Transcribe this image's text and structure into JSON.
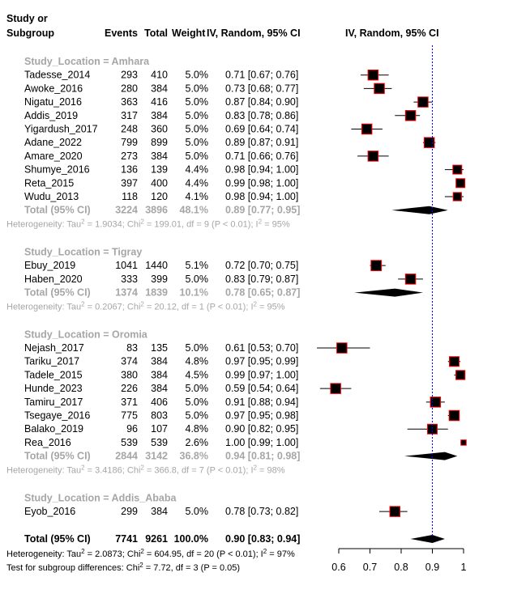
{
  "header": {
    "study_line1": "Study or",
    "study_line2": "Subgroup",
    "events": "Events",
    "total": "Total",
    "weight": "Weight",
    "ci": "IV, Random, 95% CI",
    "plot": "IV, Random, 95% CI"
  },
  "chart_data": {
    "type": "forest",
    "xlim": [
      0.6,
      1.0
    ],
    "xticks": [
      "0.6",
      "0.7",
      "0.8",
      "0.9",
      "1"
    ],
    "overall_line": 0.9,
    "colors": {
      "square_fill": "#000000",
      "square_stroke": "#ff0000",
      "ref_line": "#0000ff",
      "subgroup_text": "#a6a6a6"
    },
    "groups": [
      {
        "label": "Study_Location = Amhara",
        "studies": [
          {
            "name": "Tadesse_2014",
            "events": "293",
            "total": "410",
            "weight": "5.0%",
            "ci": "0.71 [0.67; 0.76]",
            "est": 0.71,
            "lo": 0.67,
            "hi": 0.76
          },
          {
            "name": "Awoke_2016",
            "events": "280",
            "total": "384",
            "weight": "5.0%",
            "ci": "0.73 [0.68; 0.77]",
            "est": 0.73,
            "lo": 0.68,
            "hi": 0.77
          },
          {
            "name": "Nigatu_2016",
            "events": "363",
            "total": "416",
            "weight": "5.0%",
            "ci": "0.87 [0.84; 0.90]",
            "est": 0.87,
            "lo": 0.84,
            "hi": 0.9
          },
          {
            "name": "Addis_2019",
            "events": "317",
            "total": "384",
            "weight": "5.0%",
            "ci": "0.83 [0.78; 0.86]",
            "est": 0.83,
            "lo": 0.78,
            "hi": 0.86
          },
          {
            "name": "Yigardush_2017",
            "events": "248",
            "total": "360",
            "weight": "5.0%",
            "ci": "0.69 [0.64; 0.74]",
            "est": 0.69,
            "lo": 0.64,
            "hi": 0.74
          },
          {
            "name": "Adane_2022",
            "events": "799",
            "total": "899",
            "weight": "5.0%",
            "ci": "0.89 [0.87; 0.91]",
            "est": 0.89,
            "lo": 0.87,
            "hi": 0.91
          },
          {
            "name": "Amare_2020",
            "events": "273",
            "total": "384",
            "weight": "5.0%",
            "ci": "0.71 [0.66; 0.76]",
            "est": 0.71,
            "lo": 0.66,
            "hi": 0.76
          },
          {
            "name": "Shumye_2016",
            "events": "136",
            "total": "139",
            "weight": "4.4%",
            "ci": "0.98 [0.94; 1.00]",
            "est": 0.98,
            "lo": 0.94,
            "hi": 1.0
          },
          {
            "name": "Reta_2015",
            "events": "397",
            "total": "400",
            "weight": "4.4%",
            "ci": "0.99 [0.98; 1.00]",
            "est": 0.99,
            "lo": 0.98,
            "hi": 1.0
          },
          {
            "name": "Wudu_2013",
            "events": "118",
            "total": "120",
            "weight": "4.1%",
            "ci": "0.98 [0.94; 1.00]",
            "est": 0.98,
            "lo": 0.94,
            "hi": 1.0
          }
        ],
        "total": {
          "name": "Total (95% CI)",
          "events": "3224",
          "total": "3896",
          "weight": "48.1%",
          "ci": "0.89 [0.77; 0.95]",
          "est": 0.89,
          "lo": 0.77,
          "hi": 0.95
        },
        "het": {
          "a": "Heterogeneity: Tau",
          "b": " = 1.9034; Chi",
          "c": " = 199.01, df = 9 (P < 0.01); I",
          "d": " = 95%"
        }
      },
      {
        "label": "Study_Location = Tigray",
        "studies": [
          {
            "name": "Ebuy_2019",
            "events": "1041",
            "total": "1440",
            "weight": "5.1%",
            "ci": "0.72 [0.70; 0.75]",
            "est": 0.72,
            "lo": 0.7,
            "hi": 0.75
          },
          {
            "name": "Haben_2020",
            "events": "333",
            "total": "399",
            "weight": "5.0%",
            "ci": "0.83 [0.79; 0.87]",
            "est": 0.83,
            "lo": 0.79,
            "hi": 0.87
          }
        ],
        "total": {
          "name": "Total (95% CI)",
          "events": "1374",
          "total": "1839",
          "weight": "10.1%",
          "ci": "0.78 [0.65; 0.87]",
          "est": 0.78,
          "lo": 0.65,
          "hi": 0.87
        },
        "het": {
          "a": "Heterogeneity: Tau",
          "b": " = 0.2067; Chi",
          "c": " = 20.12, df = 1 (P < 0.01); I",
          "d": " = 95%"
        }
      },
      {
        "label": "Study_Location = Oromia",
        "studies": [
          {
            "name": "Nejash_2017",
            "events": "83",
            "total": "135",
            "weight": "5.0%",
            "ci": "0.61 [0.53; 0.70]",
            "est": 0.61,
            "lo": 0.53,
            "hi": 0.7
          },
          {
            "name": "Tariku_2017",
            "events": "374",
            "total": "384",
            "weight": "4.8%",
            "ci": "0.97 [0.95; 0.99]",
            "est": 0.97,
            "lo": 0.95,
            "hi": 0.99
          },
          {
            "name": "Tadele_2015",
            "events": "380",
            "total": "384",
            "weight": "4.5%",
            "ci": "0.99 [0.97; 1.00]",
            "est": 0.99,
            "lo": 0.97,
            "hi": 1.0
          },
          {
            "name": "Hunde_2023",
            "events": "226",
            "total": "384",
            "weight": "5.0%",
            "ci": "0.59 [0.54; 0.64]",
            "est": 0.59,
            "lo": 0.54,
            "hi": 0.64
          },
          {
            "name": "Tamiru_2017",
            "events": "371",
            "total": "406",
            "weight": "5.0%",
            "ci": "0.91 [0.88; 0.94]",
            "est": 0.91,
            "lo": 0.88,
            "hi": 0.94
          },
          {
            "name": "Tsegaye_2016",
            "events": "775",
            "total": "803",
            "weight": "5.0%",
            "ci": "0.97 [0.95; 0.98]",
            "est": 0.97,
            "lo": 0.95,
            "hi": 0.98
          },
          {
            "name": "Balako_2019",
            "events": "96",
            "total": "107",
            "weight": "4.8%",
            "ci": "0.90 [0.82; 0.95]",
            "est": 0.9,
            "lo": 0.82,
            "hi": 0.95
          },
          {
            "name": "Rea_2016",
            "events": "539",
            "total": "539",
            "weight": "2.6%",
            "ci": "1.00 [0.99; 1.00]",
            "est": 1.0,
            "lo": 0.99,
            "hi": 1.0
          }
        ],
        "total": {
          "name": "Total (95% CI)",
          "events": "2844",
          "total": "3142",
          "weight": "36.8%",
          "ci": "0.94 [0.81; 0.98]",
          "est": 0.94,
          "lo": 0.81,
          "hi": 0.98
        },
        "het": {
          "a": "Heterogeneity: Tau",
          "b": " = 3.4186; Chi",
          "c": " = 366.8, df = 7 (P < 0.01); I",
          "d": " = 98%"
        }
      },
      {
        "label": "Study_Location = Addis_Ababa",
        "studies": [
          {
            "name": "Eyob_2016",
            "events": "299",
            "total": "384",
            "weight": "5.0%",
            "ci": "0.78 [0.73; 0.82]",
            "est": 0.78,
            "lo": 0.73,
            "hi": 0.82
          }
        ]
      }
    ],
    "overall": {
      "name": "Total (95% CI)",
      "events": "7741",
      "total": "9261",
      "weight": "100.0%",
      "ci": "0.90 [0.83; 0.94]",
      "est": 0.9,
      "lo": 0.83,
      "hi": 0.94
    },
    "overall_het": {
      "a": "Heterogeneity: Tau",
      "b": " = 2.0873; Chi",
      "c": " = 604.95, df = 20 (P < 0.01); I",
      "d": " = 97%"
    },
    "subgroup_test": {
      "a": "Test for subgroup differences: Chi",
      "b": " = 7.72, df = 3 (P = 0.05)"
    }
  }
}
